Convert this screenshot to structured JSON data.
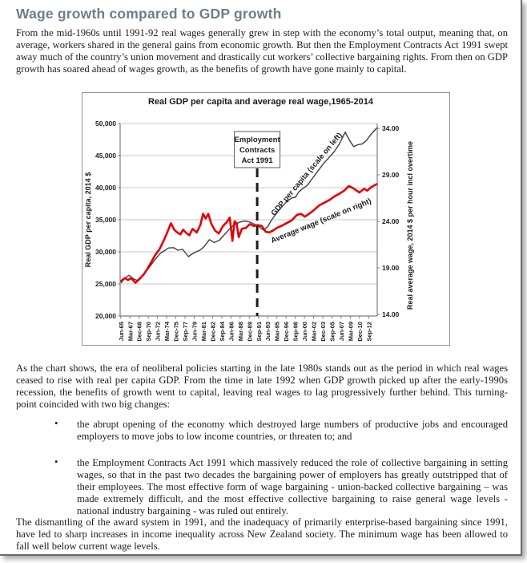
{
  "colors": {
    "heading": "#6e7e88",
    "body_text": "#1c1c1c",
    "gdp_line": "#3f3f3f",
    "wage_line": "#e60005",
    "grid": "#c9c9c9",
    "axis": "#7f7f7f",
    "chart_text": "#1a1a1a"
  },
  "page": {
    "heading": "Wage growth compared to GDP growth",
    "para1": "From the mid-1960s until 1991-92 real wages generally grew in step with the economy’s total output, meaning that, on average, workers shared in the general gains from economic growth.  But then the Employment Contracts Act 1991 swept away much of the country’s union movement and drastically cut workers’ collective bargaining rights. From then on GDP growth has soared ahead of wages growth, as the benefits of growth have gone mainly to capital.",
    "para2": "As the chart shows, the era of neoliberal policies starting in the late 1980s stands out as the period in which real wages ceased to rise with real per capita GDP.  From the time in late 1992 when GDP growth picked up after the early-1990s recession, the benefits of growth went to capital, leaving real wages to lag progressively further behind.  This turning-point coincided with two big changes:",
    "bullets": [
      "the abrupt opening of the economy which destroyed large numbers of productive jobs and encouraged employers to move jobs to low income countries, or threaten to; and",
      "the Employment Contracts Act 1991 which massively reduced the role of collective bargaining in setting wages, so that in the past two decades the bargaining power of employers has greatly outstripped that of their employees.  The most effective form of wage bargaining - union-backed collective bargaining – was made extremely difficult, and the most effective collective bargaining to raise general wage levels - national industry bargaining - was ruled out entirely.",
      "The dismantling of the award system in 1991, and the inadequacy of primarily enterprise-based bargaining since 1991, have led to sharp increases in income inequality across New Zealand society. The minimum wage has been allowed to fall well below current wage levels."
    ]
  },
  "chart_data": {
    "type": "line",
    "title": "Real GDP per capita and average real wage,1965-2014",
    "annotation": {
      "lines": [
        "Employment",
        "Contracts",
        "Act 1991"
      ],
      "year": 1991.42
    },
    "x_axis": {
      "range": [
        1965.3,
        2014.3
      ],
      "ticks": [
        {
          "year": 1965.42,
          "label": "Jun-65"
        },
        {
          "year": 1967.17,
          "label": "Mar-67"
        },
        {
          "year": 1968.92,
          "label": "Dec-68"
        },
        {
          "year": 1970.67,
          "label": "Sep-70"
        },
        {
          "year": 1972.42,
          "label": "Jun-72"
        },
        {
          "year": 1974.17,
          "label": "Mar-74"
        },
        {
          "year": 1975.92,
          "label": "Dec-75"
        },
        {
          "year": 1977.67,
          "label": "Sep-77"
        },
        {
          "year": 1979.42,
          "label": "Jun-79"
        },
        {
          "year": 1981.17,
          "label": "Mar-81"
        },
        {
          "year": 1982.92,
          "label": "Dec-82"
        },
        {
          "year": 1984.67,
          "label": "Sep-84"
        },
        {
          "year": 1986.42,
          "label": "Jun-86"
        },
        {
          "year": 1988.17,
          "label": "Mar-88"
        },
        {
          "year": 1989.92,
          "label": "Dec-89"
        },
        {
          "year": 1991.67,
          "label": "Sep-91"
        },
        {
          "year": 1993.42,
          "label": "Jun-93"
        },
        {
          "year": 1995.17,
          "label": "Mar-95"
        },
        {
          "year": 1996.92,
          "label": "Dec-96"
        },
        {
          "year": 1998.67,
          "label": "Sep-98"
        },
        {
          "year": 2000.42,
          "label": "Jun-00"
        },
        {
          "year": 2002.17,
          "label": "Mar-02"
        },
        {
          "year": 2003.92,
          "label": "Dec-03"
        },
        {
          "year": 2005.67,
          "label": "Sep-05"
        },
        {
          "year": 2007.42,
          "label": "Jun-07"
        },
        {
          "year": 2009.17,
          "label": "Mar-09"
        },
        {
          "year": 2010.92,
          "label": "Dec-10"
        },
        {
          "year": 2012.67,
          "label": "Sep-12"
        }
      ]
    },
    "left_axis": {
      "title": "Real GDP per capita, 2014 $",
      "range": [
        20000,
        50000
      ],
      "ticks": [
        {
          "v": 20000,
          "label": "20,000"
        },
        {
          "v": 25000,
          "label": "25,000"
        },
        {
          "v": 30000,
          "label": "30,000"
        },
        {
          "v": 35000,
          "label": "35,000"
        },
        {
          "v": 40000,
          "label": "40,000"
        },
        {
          "v": 45000,
          "label": "45,000"
        },
        {
          "v": 50000,
          "label": "50,000"
        }
      ]
    },
    "right_axis": {
      "title": "Real average wage, 2014 $ per hour incl overtime",
      "range": [
        14,
        34
      ],
      "ticks": [
        {
          "v": 14,
          "label": "14.00"
        },
        {
          "v": 19,
          "label": "19.00"
        },
        {
          "v": 24,
          "label": "24.00"
        },
        {
          "v": 29,
          "label": "29.00"
        },
        {
          "v": 34,
          "label": "34.00"
        }
      ]
    },
    "series": [
      {
        "name": "gdp-per-capita",
        "label": "GDP per capita (scale on left)",
        "axis": "left",
        "color": "#3f3f3f",
        "width": 1.4,
        "points": [
          [
            1965.5,
            25200
          ],
          [
            1966.2,
            25900
          ],
          [
            1967.0,
            26350
          ],
          [
            1967.8,
            25800
          ],
          [
            1968.5,
            25550
          ],
          [
            1969.3,
            26100
          ],
          [
            1970.0,
            26750
          ],
          [
            1970.8,
            27500
          ],
          [
            1971.5,
            28300
          ],
          [
            1972.3,
            29150
          ],
          [
            1973.0,
            29800
          ],
          [
            1973.8,
            30200
          ],
          [
            1974.5,
            30600
          ],
          [
            1975.5,
            30650
          ],
          [
            1976.3,
            30250
          ],
          [
            1977.2,
            30400
          ],
          [
            1978.3,
            29250
          ],
          [
            1979.0,
            29650
          ],
          [
            1979.8,
            30000
          ],
          [
            1980.5,
            30250
          ],
          [
            1981.3,
            30800
          ],
          [
            1982.3,
            31900
          ],
          [
            1983.2,
            31450
          ],
          [
            1984.2,
            31800
          ],
          [
            1985.2,
            32700
          ],
          [
            1986.2,
            33600
          ],
          [
            1987.0,
            34200
          ],
          [
            1988.0,
            34600
          ],
          [
            1989.0,
            34800
          ],
          [
            1990.0,
            34650
          ],
          [
            1991.0,
            34250
          ],
          [
            1991.8,
            33900
          ],
          [
            1992.6,
            33400
          ],
          [
            1993.4,
            33900
          ],
          [
            1994.2,
            35000
          ],
          [
            1995.0,
            35900
          ],
          [
            1996.0,
            36900
          ],
          [
            1997.0,
            37800
          ],
          [
            1998.0,
            38400
          ],
          [
            1998.7,
            38500
          ],
          [
            1999.4,
            39400
          ],
          [
            2000.2,
            39900
          ],
          [
            2001.0,
            40400
          ],
          [
            2002.0,
            41500
          ],
          [
            2003.0,
            42600
          ],
          [
            2004.0,
            43700
          ],
          [
            2005.0,
            44600
          ],
          [
            2006.0,
            45500
          ],
          [
            2007.0,
            46700
          ],
          [
            2008.2,
            48650
          ],
          [
            2009.0,
            47400
          ],
          [
            2009.8,
            46400
          ],
          [
            2010.6,
            46700
          ],
          [
            2011.4,
            46800
          ],
          [
            2012.2,
            47300
          ],
          [
            2013.0,
            48200
          ],
          [
            2014.2,
            49300
          ]
        ]
      },
      {
        "name": "average-wage",
        "label": "Average wage (scale on right)",
        "axis": "right",
        "color": "#e60005",
        "width": 2.6,
        "points": [
          [
            1965.5,
            17.6
          ],
          [
            1966.2,
            17.9
          ],
          [
            1966.8,
            17.7
          ],
          [
            1967.4,
            17.9
          ],
          [
            1968.2,
            17.4
          ],
          [
            1969.0,
            17.8
          ],
          [
            1969.8,
            18.3
          ],
          [
            1970.5,
            18.9
          ],
          [
            1971.2,
            19.6
          ],
          [
            1972.0,
            20.4
          ],
          [
            1972.8,
            21.0
          ],
          [
            1973.5,
            21.8
          ],
          [
            1974.2,
            22.7
          ],
          [
            1975.0,
            23.8
          ],
          [
            1975.6,
            23.1
          ],
          [
            1976.2,
            22.8
          ],
          [
            1976.8,
            22.6
          ],
          [
            1977.3,
            23.1
          ],
          [
            1978.0,
            22.7
          ],
          [
            1978.5,
            22.5
          ],
          [
            1979.1,
            23.2
          ],
          [
            1979.9,
            22.8
          ],
          [
            1980.6,
            23.6
          ],
          [
            1981.1,
            24.8
          ],
          [
            1981.6,
            24.3
          ],
          [
            1982.1,
            24.8
          ],
          [
            1982.7,
            23.7
          ],
          [
            1983.4,
            23.0
          ],
          [
            1984.1,
            22.7
          ],
          [
            1984.9,
            23.5
          ],
          [
            1985.6,
            23.9
          ],
          [
            1986.2,
            24.4
          ],
          [
            1986.7,
            21.9
          ],
          [
            1987.1,
            24.0
          ],
          [
            1987.5,
            23.8
          ],
          [
            1987.9,
            22.3
          ],
          [
            1988.5,
            23.2
          ],
          [
            1989.3,
            23.3
          ],
          [
            1990.0,
            23.7
          ],
          [
            1990.8,
            23.5
          ],
          [
            1991.5,
            23.6
          ],
          [
            1992.3,
            23.5
          ],
          [
            1993.0,
            22.9
          ],
          [
            1993.7,
            22.8
          ],
          [
            1994.4,
            23.0
          ],
          [
            1995.2,
            23.3
          ],
          [
            1996.0,
            23.5
          ],
          [
            1997.0,
            23.8
          ],
          [
            1998.0,
            24.1
          ],
          [
            1999.0,
            24.7
          ],
          [
            1999.8,
            24.8
          ],
          [
            2000.5,
            24.5
          ],
          [
            2001.3,
            24.8
          ],
          [
            2002.2,
            25.2
          ],
          [
            2003.2,
            25.7
          ],
          [
            2004.2,
            26.0
          ],
          [
            2005.2,
            26.3
          ],
          [
            2006.2,
            26.7
          ],
          [
            2007.2,
            27.0
          ],
          [
            2008.0,
            27.3
          ],
          [
            2008.9,
            27.8
          ],
          [
            2009.6,
            27.6
          ],
          [
            2010.9,
            27.1
          ],
          [
            2011.8,
            27.5
          ],
          [
            2012.4,
            27.3
          ],
          [
            2013.2,
            27.7
          ],
          [
            2014.2,
            28.0
          ]
        ]
      }
    ],
    "grid": true,
    "legend_position": "labels-on-lines"
  }
}
